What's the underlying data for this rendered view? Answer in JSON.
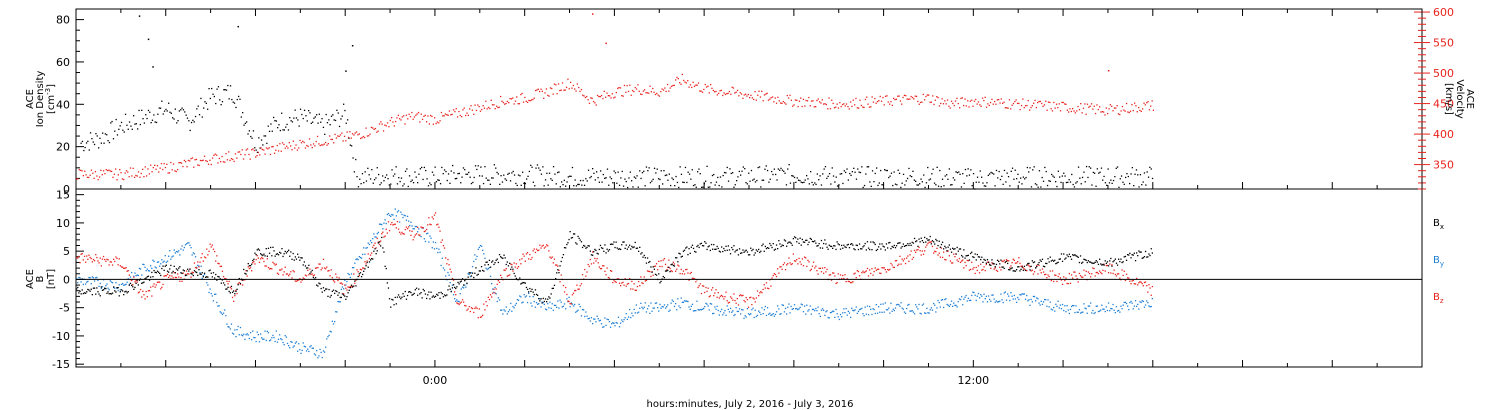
{
  "chart_data": [
    {
      "type": "scatter",
      "panel": "top",
      "ylabel": [
        "ACE",
        "Ion Density",
        "[cm^-3]"
      ],
      "ylabel_right": [
        "ACE",
        "Velocity",
        "[km/s]"
      ],
      "ylim": [
        0,
        85
      ],
      "ylim_right": [
        310,
        605
      ],
      "yticks": [
        "0",
        "20",
        "40",
        "60",
        "80"
      ],
      "yticks_right": [
        "350",
        "400",
        "450",
        "500",
        "550",
        "600"
      ],
      "xlim_hours": [
        -8,
        22
      ],
      "series": [
        {
          "name": "Ion Density",
          "color": "#000000",
          "axis": "left",
          "x": [
            -7.9,
            -7.5,
            -7.0,
            -6.5,
            -6.0,
            -5.5,
            -5.0,
            -4.5,
            -4.0,
            -3.5,
            -3.0,
            -2.5,
            -2.0,
            -1.75,
            -1.5,
            -1.0,
            -0.5,
            0.0,
            0.5,
            1.0,
            2.0,
            3.0,
            4.0,
            5.0,
            6.0,
            7.0,
            8.0,
            9.0,
            10.0,
            11.0,
            12.0,
            13.0,
            14.0,
            15.0,
            16.0
          ],
          "values": [
            22,
            24,
            30,
            34,
            38,
            32,
            44,
            46,
            22,
            32,
            34,
            30,
            36,
            6,
            6,
            7,
            6,
            6,
            7,
            7,
            7,
            6,
            6,
            6,
            6,
            6,
            7,
            6,
            6,
            6,
            5,
            6,
            6,
            6,
            6
          ],
          "outliers_x": [
            -6.6,
            -6.4,
            -6.3,
            -4.4,
            -2.0,
            -1.85
          ],
          "outliers_y": [
            82,
            71,
            58,
            77,
            56,
            68
          ]
        },
        {
          "name": "Velocity",
          "color": "#e8231e",
          "axis": "right",
          "x": [
            -8.0,
            -7.0,
            -6.0,
            -5.0,
            -4.0,
            -3.0,
            -2.0,
            -1.5,
            -1.0,
            -0.5,
            0.0,
            0.5,
            1.0,
            1.5,
            2.0,
            2.5,
            3.0,
            3.5,
            4.0,
            4.5,
            5.0,
            5.5,
            6.0,
            7.0,
            8.0,
            9.0,
            10.0,
            11.0,
            11.5,
            12.0,
            13.0,
            14.0,
            15.0,
            16.0
          ],
          "values": [
            335,
            335,
            345,
            360,
            370,
            385,
            395,
            405,
            420,
            430,
            425,
            435,
            445,
            455,
            460,
            470,
            485,
            455,
            470,
            475,
            470,
            490,
            475,
            465,
            455,
            450,
            455,
            460,
            450,
            455,
            450,
            445,
            440,
            448
          ],
          "outliers_x": [
            3.5,
            3.8,
            15.0
          ],
          "outliers_y": [
            598,
            550,
            505
          ]
        }
      ]
    },
    {
      "type": "scatter",
      "panel": "bottom",
      "ylabel": [
        "ACE",
        "B",
        "[nT]"
      ],
      "ylim": [
        -15.5,
        16
      ],
      "yticks": [
        "-15",
        "-10",
        "-5",
        "0",
        "5",
        "10",
        "15"
      ],
      "xlim_hours": [
        -8,
        22
      ],
      "xticks": [
        "0:00",
        "12:00"
      ],
      "xlabel": "hours:minutes, July  2, 2016 - July  3, 2016",
      "series": [
        {
          "name": "Bx",
          "color": "#000000",
          "x": [
            -8.0,
            -7.0,
            -6.0,
            -5.0,
            -4.5,
            -4.0,
            -3.5,
            -3.0,
            -2.5,
            -2.0,
            -1.5,
            -1.2,
            -1.0,
            -0.5,
            0.0,
            0.5,
            1.0,
            1.5,
            2.0,
            2.5,
            3.0,
            3.5,
            4.0,
            4.5,
            5.0,
            5.5,
            6.0,
            7.0,
            8.0,
            9.0,
            10.0,
            11.0,
            12.0,
            13.0,
            14.0,
            15.0,
            16.0
          ],
          "values": [
            -2,
            -2,
            2,
            1,
            -2,
            5,
            5,
            4,
            -2,
            -3,
            3,
            7,
            -4,
            -2,
            -3,
            -1,
            2,
            4,
            -1,
            -4,
            8,
            5,
            6,
            6,
            0,
            5,
            6,
            5,
            7,
            6,
            6,
            7,
            4,
            2,
            4,
            3,
            5
          ]
        },
        {
          "name": "By",
          "color": "#1f7fd6",
          "x": [
            -8.0,
            -7.0,
            -6.5,
            -6.0,
            -5.5,
            -5.0,
            -4.5,
            -4.0,
            -3.5,
            -3.0,
            -2.5,
            -2.0,
            -1.5,
            -1.0,
            -0.5,
            0.0,
            0.5,
            1.0,
            1.5,
            2.0,
            2.5,
            3.0,
            3.5,
            4.0,
            4.5,
            5.0,
            5.5,
            6.0,
            7.0,
            8.0,
            9.0,
            10.0,
            11.0,
            12.0,
            13.0,
            14.0,
            15.0,
            16.0
          ],
          "values": [
            0,
            -1,
            2,
            4,
            6,
            -2,
            -9,
            -10,
            -10,
            -12,
            -13,
            0,
            6,
            12,
            10,
            6,
            -4,
            6,
            -6,
            -3,
            -5,
            -4,
            -7,
            -8,
            -5,
            -5,
            -4,
            -5,
            -6,
            -5,
            -6,
            -5,
            -5,
            -3,
            -3,
            -5,
            -5,
            -4
          ]
        },
        {
          "name": "Bz",
          "color": "#e8231e",
          "x": [
            -8.0,
            -7.0,
            -6.5,
            -6.0,
            -5.5,
            -5.0,
            -4.5,
            -4.0,
            -3.5,
            -3.0,
            -2.5,
            -2.0,
            -1.5,
            -1.0,
            -0.5,
            0.0,
            0.5,
            1.0,
            1.5,
            2.0,
            2.5,
            3.0,
            3.5,
            4.0,
            4.5,
            5.0,
            5.5,
            6.0,
            7.0,
            8.0,
            9.0,
            10.0,
            11.0,
            12.0,
            13.0,
            14.0,
            15.0,
            16.0
          ],
          "values": [
            4,
            3,
            -3,
            0,
            1,
            6,
            -3,
            4,
            2,
            0,
            3,
            -2,
            4,
            10,
            8,
            11,
            -4,
            -6,
            1,
            4,
            6,
            -4,
            4,
            0,
            -1,
            3,
            2,
            -2,
            -4,
            4,
            0,
            2,
            6,
            2,
            3,
            0,
            2,
            -2
          ]
        }
      ]
    }
  ],
  "legend": {
    "bx": "B",
    "bx_sub": "x",
    "by": "B",
    "by_sub": "y",
    "bz": "B",
    "bz_sub": "z"
  }
}
